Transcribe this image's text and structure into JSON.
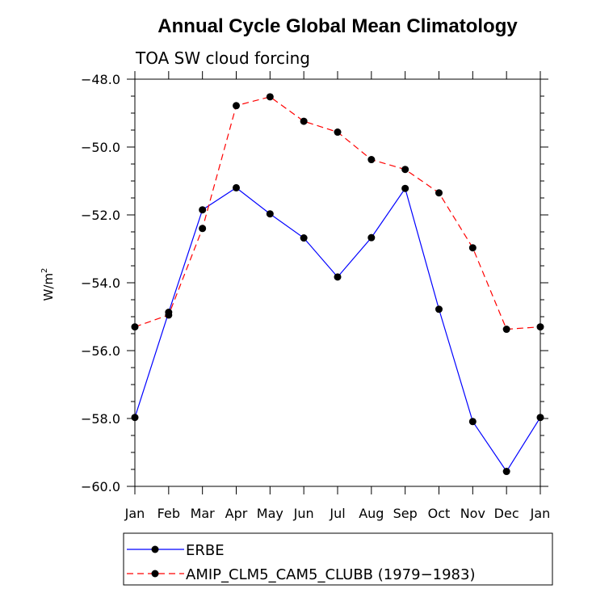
{
  "chart_data": {
    "type": "line",
    "title": "Annual Cycle Global Mean Climatology",
    "subtitle": "TOA SW cloud forcing",
    "ylabel": "W/m",
    "ylabel_sup": "2",
    "xlabel": "",
    "categories": [
      "Jan",
      "Feb",
      "Mar",
      "Apr",
      "May",
      "Jun",
      "Jul",
      "Aug",
      "Sep",
      "Oct",
      "Nov",
      "Dec",
      "Jan"
    ],
    "ylim": [
      -60.0,
      -48.0
    ],
    "y_ticks": [
      -48.0,
      -50.0,
      -52.0,
      -54.0,
      -56.0,
      -58.0,
      -60.0
    ],
    "y_tick_labels": [
      "−48.0",
      "−50.0",
      "−52.0",
      "−54.0",
      "−56.0",
      "−58.0",
      "−60.0"
    ],
    "grid": false,
    "legend_position": "bottom",
    "series": [
      {
        "name": "ERBE",
        "color": "#0000ff",
        "dash": "solid",
        "values": [
          -57.97,
          -54.87,
          -51.85,
          -51.2,
          -51.97,
          -52.68,
          -53.83,
          -52.67,
          -51.22,
          -54.78,
          -58.09,
          -59.56,
          -57.97
        ]
      },
      {
        "name": "AMIP_CLM5_CAM5_CLUBB (1979−1983)",
        "color": "#ff0000",
        "dash": "dashed",
        "values": [
          -55.3,
          -54.95,
          -52.4,
          -48.78,
          -48.52,
          -49.24,
          -49.56,
          -50.37,
          -50.66,
          -51.35,
          -52.97,
          -55.37,
          -55.3
        ]
      }
    ]
  }
}
